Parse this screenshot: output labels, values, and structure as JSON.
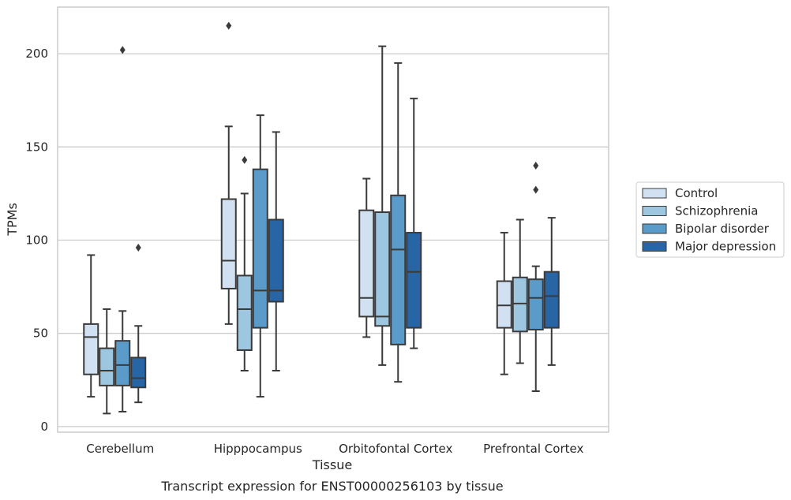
{
  "caption": "Transcript expression for ENST00000256103 by tissue",
  "chart_data": {
    "type": "box",
    "xlabel": "Tissue",
    "ylabel": "TPMs",
    "ylim": [
      -3,
      225
    ],
    "yticks": [
      0,
      50,
      100,
      150,
      200
    ],
    "grid": "horizontal",
    "legend_position": "right",
    "categories": [
      "Cerebellum",
      "Hipppocampus",
      "Orbitofontal Cortex",
      "Prefrontal Cortex"
    ],
    "series": [
      {
        "name": "Control",
        "color": "#d1e1f1",
        "boxes": [
          {
            "whisker_low": 16,
            "q1": 28,
            "median": 48,
            "q3": 55,
            "whisker_high": 92,
            "outliers": []
          },
          {
            "whisker_low": 55,
            "q1": 74,
            "median": 89,
            "q3": 122,
            "whisker_high": 161,
            "outliers": [
              215
            ]
          },
          {
            "whisker_low": 48,
            "q1": 59,
            "median": 69,
            "q3": 116,
            "whisker_high": 133,
            "outliers": []
          },
          {
            "whisker_low": 28,
            "q1": 53,
            "median": 65,
            "q3": 78,
            "whisker_high": 104,
            "outliers": []
          }
        ]
      },
      {
        "name": "Schizophrenia",
        "color": "#9dc6e0",
        "boxes": [
          {
            "whisker_low": 7,
            "q1": 22,
            "median": 30,
            "q3": 42,
            "whisker_high": 63,
            "outliers": []
          },
          {
            "whisker_low": 30,
            "q1": 41,
            "median": 63,
            "q3": 81,
            "whisker_high": 125,
            "outliers": [
              143
            ]
          },
          {
            "whisker_low": 33,
            "q1": 54,
            "median": 59,
            "q3": 115,
            "whisker_high": 204,
            "outliers": []
          },
          {
            "whisker_low": 34,
            "q1": 51,
            "median": 66,
            "q3": 80,
            "whisker_high": 111,
            "outliers": []
          }
        ]
      },
      {
        "name": "Bipolar disorder",
        "color": "#5a9bc9",
        "boxes": [
          {
            "whisker_low": 8,
            "q1": 22,
            "median": 33,
            "q3": 46,
            "whisker_high": 62,
            "outliers": [
              202
            ]
          },
          {
            "whisker_low": 16,
            "q1": 53,
            "median": 73,
            "q3": 138,
            "whisker_high": 167,
            "outliers": []
          },
          {
            "whisker_low": 24,
            "q1": 44,
            "median": 95,
            "q3": 124,
            "whisker_high": 195,
            "outliers": []
          },
          {
            "whisker_low": 19,
            "q1": 52,
            "median": 69,
            "q3": 79,
            "whisker_high": 86,
            "outliers": [
              127,
              140
            ]
          }
        ]
      },
      {
        "name": "Major depression",
        "color": "#2865a5",
        "boxes": [
          {
            "whisker_low": 13,
            "q1": 21,
            "median": 26,
            "q3": 37,
            "whisker_high": 54,
            "outliers": [
              96
            ]
          },
          {
            "whisker_low": 30,
            "q1": 67,
            "median": 73,
            "q3": 111,
            "whisker_high": 158,
            "outliers": []
          },
          {
            "whisker_low": 42,
            "q1": 53,
            "median": 83,
            "q3": 104,
            "whisker_high": 176,
            "outliers": []
          },
          {
            "whisker_low": 33,
            "q1": 53,
            "median": 70,
            "q3": 83,
            "whisker_high": 112,
            "outliers": []
          }
        ]
      }
    ]
  }
}
